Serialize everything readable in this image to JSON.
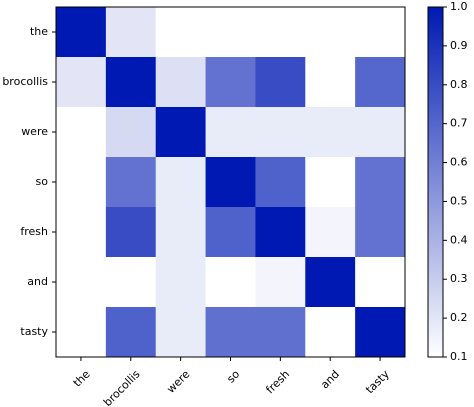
{
  "chart_data": {
    "type": "heatmap",
    "x_labels": [
      "the",
      "brocollis",
      "were",
      "so",
      "fresh",
      "and",
      "tasty"
    ],
    "y_labels": [
      "the",
      "brocollis",
      "were",
      "so",
      "fresh",
      "and",
      "tasty"
    ],
    "values": [
      [
        1.0,
        0.2,
        0.1,
        0.1,
        0.1,
        0.1,
        0.1
      ],
      [
        0.2,
        1.0,
        0.22,
        0.65,
        0.8,
        0.1,
        0.7
      ],
      [
        0.1,
        0.25,
        1.0,
        0.18,
        0.18,
        0.18,
        0.18
      ],
      [
        0.1,
        0.65,
        0.18,
        1.0,
        0.72,
        0.1,
        0.65
      ],
      [
        0.1,
        0.8,
        0.18,
        0.72,
        1.0,
        0.14,
        0.65
      ],
      [
        0.1,
        0.1,
        0.18,
        0.1,
        0.14,
        1.0,
        0.1
      ],
      [
        0.1,
        0.72,
        0.18,
        0.66,
        0.66,
        0.1,
        1.0
      ]
    ],
    "colorbar": {
      "min": 0.1,
      "max": 1.0,
      "ticks": [
        "0.1",
        "0.2",
        "0.3",
        "0.4",
        "0.5",
        "0.6",
        "0.7",
        "0.8",
        "0.9",
        "1.0"
      ],
      "color_low": "#ffffff",
      "color_high": "#0019b2"
    },
    "title": "",
    "xlabel": "",
    "ylabel": ""
  }
}
